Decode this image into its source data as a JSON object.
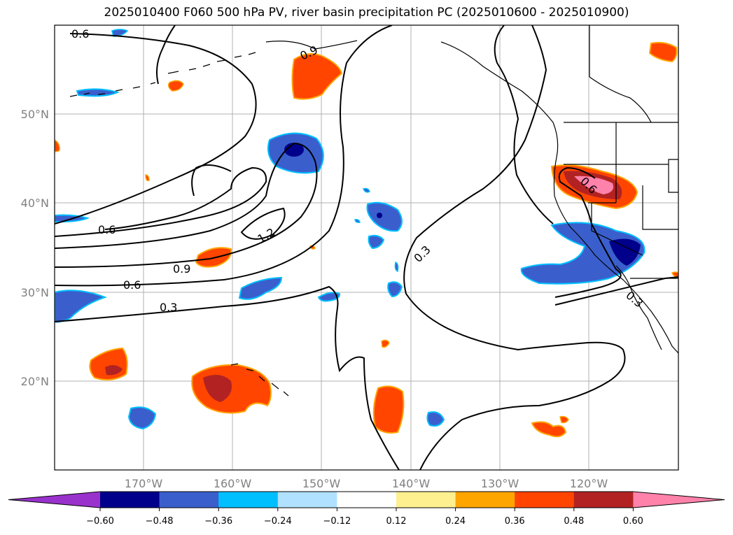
{
  "title": "2025010400 F060 500 hPa PV, river basin precipitation PC (2025010600 - 2025010900)",
  "map": {
    "lon_labels": [
      "170°W",
      "160°W",
      "150°W",
      "140°W",
      "130°W",
      "120°W"
    ],
    "lat_labels": [
      "50°N",
      "40°N",
      "30°N",
      "20°N"
    ],
    "contour_labels": [
      "0.6",
      "0.9",
      "0.6",
      "1.2",
      "0.9",
      "0.6",
      "0.3",
      "0.3",
      "0.6",
      "0.3"
    ]
  },
  "colorbar": {
    "colors": [
      "#9932cc",
      "#00008b",
      "#3a5fcd",
      "#00bfff",
      "#b0e2ff",
      "#ffffff",
      "#fff08f",
      "#ffa500",
      "#ff4500",
      "#b22222",
      "#ff82ab"
    ],
    "tick_labels": [
      "−0.60",
      "−0.48",
      "−0.36",
      "−0.24",
      "−0.12",
      "0.12",
      "0.24",
      "0.36",
      "0.48",
      "0.60"
    ]
  }
}
